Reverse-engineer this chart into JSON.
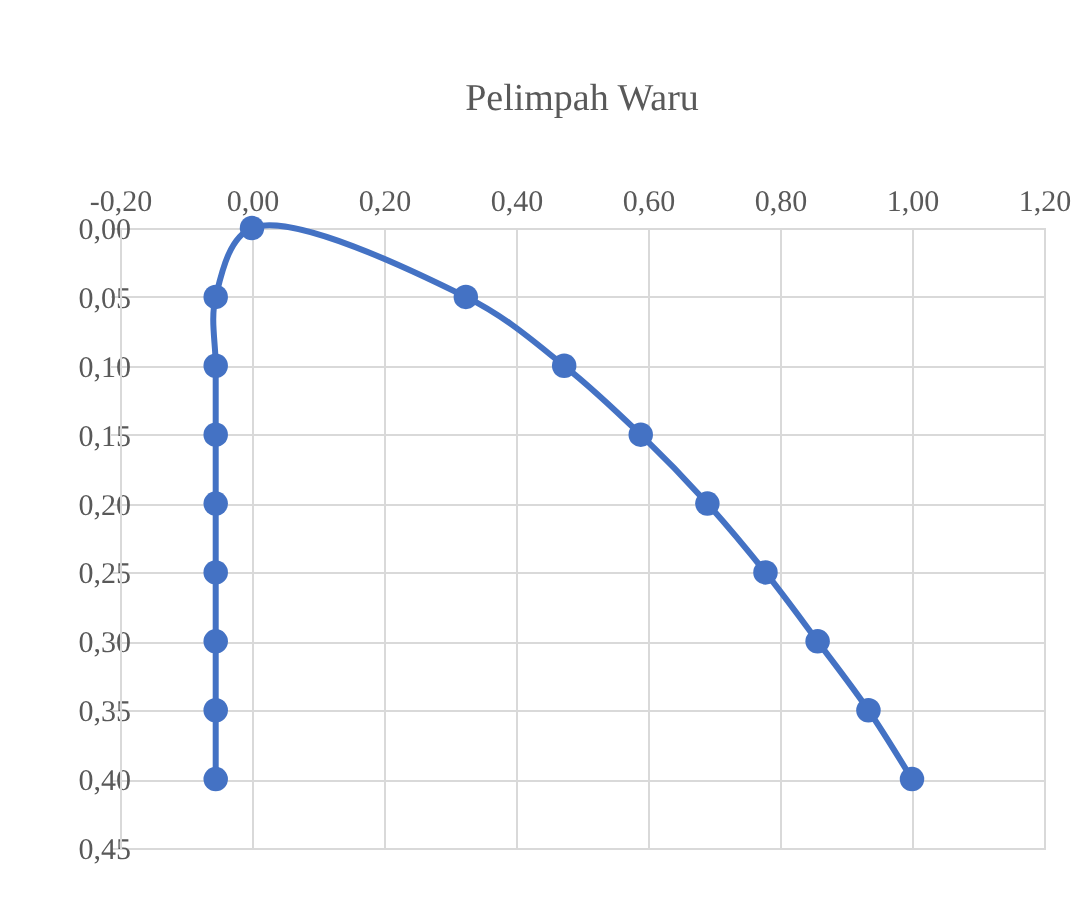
{
  "chart_data": {
    "type": "line",
    "title": "Pelimpah Waru",
    "x": [
      -0.055,
      -0.055,
      -0.055,
      -0.055,
      -0.055,
      -0.055,
      -0.055,
      -0.055,
      0,
      0.324,
      0.473,
      0.589,
      0.69,
      0.778,
      0.857,
      0.934,
      1.0
    ],
    "series": [
      {
        "color": "#4472c4",
        "values": [
          0.4,
          0.35,
          0.3,
          0.25,
          0.2,
          0.15,
          0.1,
          0.05,
          0,
          0.05,
          0.1,
          0.15,
          0.2,
          0.25,
          0.3,
          0.35,
          0.4
        ]
      }
    ],
    "xlim": [
      -0.2,
      1.2
    ],
    "xticks": [
      {
        "value": -0.2,
        "label": "-0,20"
      },
      {
        "value": 0,
        "label": "0,00"
      },
      {
        "value": 0.2,
        "label": "0,20"
      },
      {
        "value": 0.4,
        "label": "0,40"
      },
      {
        "value": 0.6,
        "label": "0,60"
      },
      {
        "value": 0.8,
        "label": "0,80"
      },
      {
        "value": 1.0,
        "label": "1,00"
      },
      {
        "value": 1.2,
        "label": "1,20"
      }
    ],
    "ylim": [
      0.45,
      0
    ],
    "yticks": [
      {
        "value": 0,
        "label": "0,00"
      },
      {
        "value": 0.05,
        "label": "0,05"
      },
      {
        "value": 0.1,
        "label": "0,10"
      },
      {
        "value": 0.15,
        "label": "0,15"
      },
      {
        "value": 0.2,
        "label": "0,20"
      },
      {
        "value": 0.25,
        "label": "0,25"
      },
      {
        "value": 0.3,
        "label": "0,30"
      },
      {
        "value": 0.35,
        "label": "0,35"
      },
      {
        "value": 0.4,
        "label": "0,40"
      },
      {
        "value": 0.45,
        "label": "0,45"
      }
    ],
    "grid": true,
    "marker": "circle",
    "line_style": "solid"
  }
}
